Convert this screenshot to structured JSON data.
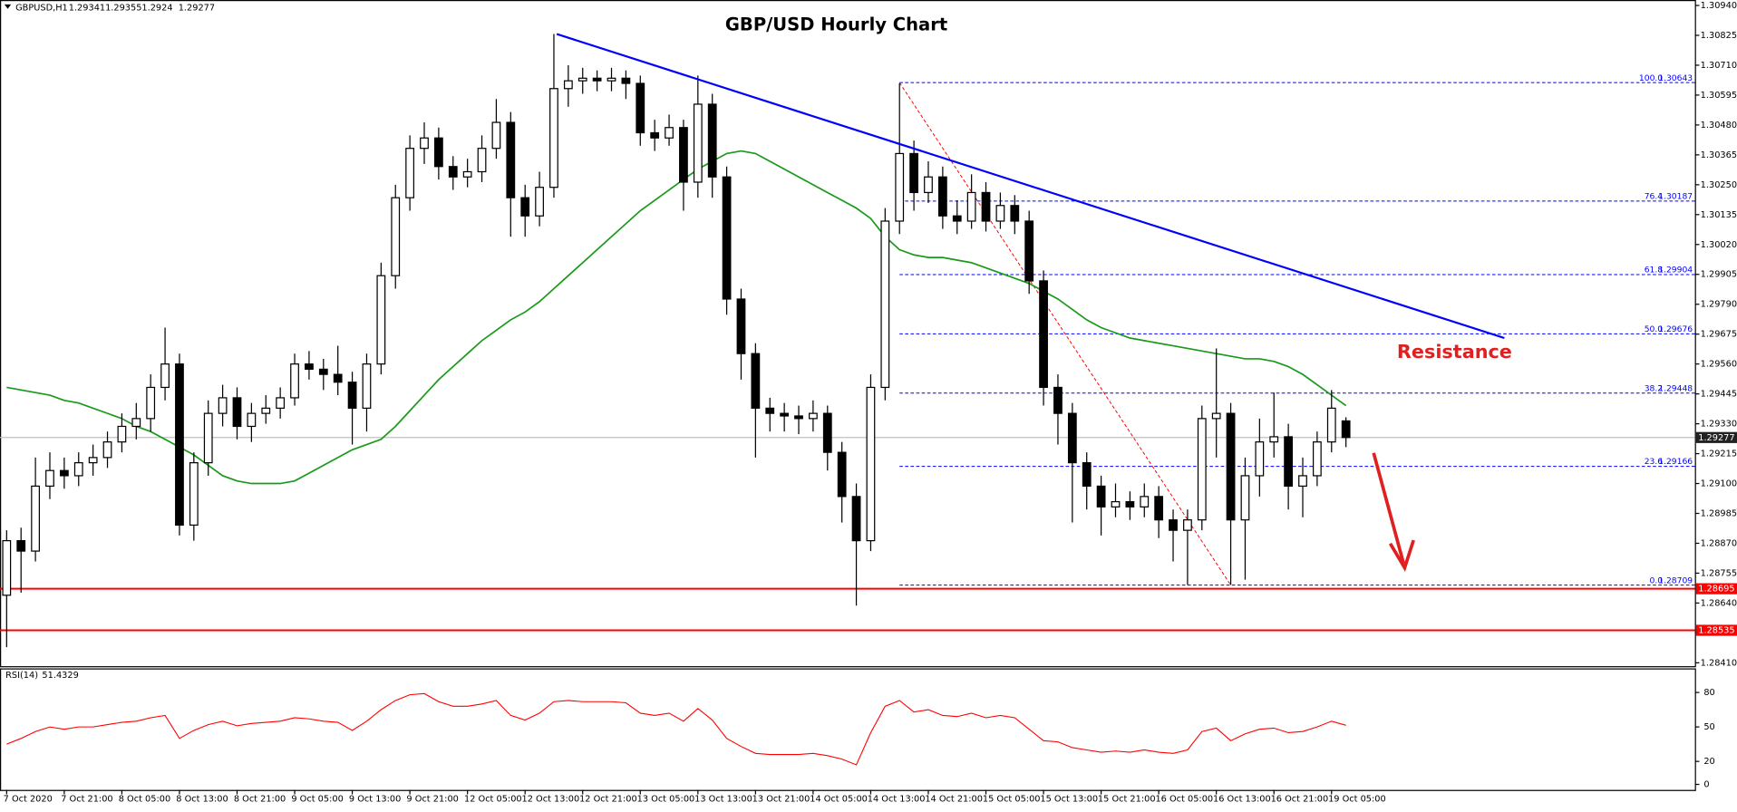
{
  "chart_data": {
    "type": "candlestick",
    "title": "GBP/USD Hourly Chart",
    "symbol": "GBPUSD,H1",
    "categories": [
      "7 Oct 2020",
      null,
      null,
      null,
      "7 Oct 21:00",
      null,
      null,
      null,
      "8 Oct 05:00",
      null,
      null,
      null,
      "8 Oct 13:00",
      null,
      null,
      null,
      "8 Oct 21:00",
      null,
      null,
      null,
      "9 Oct 05:00",
      null,
      null,
      null,
      "9 Oct 13:00",
      null,
      null,
      null,
      "9 Oct 21:00",
      null,
      null,
      null,
      "12 Oct 05:00",
      null,
      null,
      null,
      "12 Oct 13:00",
      null,
      null,
      null,
      "12 Oct 21:00",
      null,
      null,
      null,
      "13 Oct 05:00",
      null,
      null,
      null,
      "13 Oct 13:00",
      null,
      null,
      null,
      "13 Oct 21:00",
      null,
      null,
      null,
      "14 Oct 05:00",
      null,
      null,
      null,
      "14 Oct 13:00",
      null,
      null,
      null,
      "14 Oct 21:00",
      null,
      null,
      null,
      "15 Oct 05:00",
      null,
      null,
      null,
      "15 Oct 13:00",
      null,
      null,
      null,
      "15 Oct 21:00",
      null,
      null,
      null,
      "16 Oct 05:00",
      null,
      null,
      null,
      "16 Oct 13:00",
      null,
      null,
      null,
      "16 Oct 21:00",
      null,
      null,
      null,
      "19 Oct 05:00",
      null
    ],
    "open": [
      1.2867,
      1.2888,
      1.2884,
      1.2909,
      1.2915,
      1.2913,
      1.2918,
      1.292,
      1.2926,
      1.2932,
      1.2935,
      1.2947,
      1.2956,
      1.2894,
      1.2918,
      1.2937,
      1.2943,
      1.2932,
      1.2937,
      1.2939,
      1.2943,
      1.2956,
      1.2954,
      1.2952,
      1.2949,
      1.2939,
      1.2956,
      1.299,
      1.302,
      1.3039,
      1.3043,
      1.3032,
      1.3028,
      1.303,
      1.3039,
      1.3049,
      1.302,
      1.3013,
      1.3024,
      1.3062,
      1.3065,
      1.3066,
      1.3065,
      1.3066,
      1.3064,
      1.3045,
      1.3043,
      1.3047,
      1.3026,
      1.3056,
      1.3028,
      1.2981,
      1.296,
      1.2939,
      1.2937,
      1.2936,
      1.2935,
      1.2937,
      1.2922,
      1.2905,
      1.2888,
      1.2947,
      1.3011,
      1.3037,
      1.3022,
      1.3028,
      1.3013,
      1.3011,
      1.3022,
      1.3011,
      1.3017,
      1.3011,
      1.2988,
      1.2947,
      1.2937,
      1.2918,
      1.2909,
      1.2901,
      1.2903,
      1.2901,
      1.2905,
      1.2896,
      1.2892,
      1.2896,
      1.2935,
      1.2937,
      1.2896,
      1.2913,
      1.2926,
      1.2928,
      1.2909,
      1.2913,
      1.2926,
      1.29341
    ],
    "high": [
      1.2892,
      1.2893,
      1.292,
      1.2922,
      1.292,
      1.2922,
      1.2925,
      1.293,
      1.2937,
      1.2941,
      1.2952,
      1.297,
      1.296,
      1.2922,
      1.2942,
      1.2948,
      1.2947,
      1.2941,
      1.2944,
      1.2947,
      1.296,
      1.2961,
      1.2958,
      1.2963,
      1.2953,
      1.296,
      1.2995,
      1.3025,
      1.3044,
      1.3049,
      1.3047,
      1.3036,
      1.3035,
      1.3044,
      1.3058,
      1.3053,
      1.3025,
      1.303,
      1.3083,
      1.3071,
      1.307,
      1.3069,
      1.307,
      1.3069,
      1.3067,
      1.305,
      1.3052,
      1.305,
      1.3067,
      1.306,
      1.3032,
      1.2985,
      1.2964,
      1.2943,
      1.2941,
      1.294,
      1.2942,
      1.294,
      1.2926,
      1.291,
      1.2952,
      1.3016,
      1.3064,
      1.3042,
      1.3034,
      1.3032,
      1.3019,
      1.3029,
      1.3026,
      1.3022,
      1.3021,
      1.3015,
      1.2992,
      1.2952,
      1.2941,
      1.2922,
      1.2913,
      1.291,
      1.2907,
      1.291,
      1.2909,
      1.29,
      1.29,
      1.294,
      1.2962,
      1.2941,
      1.292,
      1.2935,
      1.2945,
      1.2933,
      1.292,
      1.293,
      1.2946,
      1.29355
    ],
    "low": [
      1.2847,
      1.2868,
      1.288,
      1.2904,
      1.2908,
      1.2909,
      1.2913,
      1.2916,
      1.2922,
      1.2927,
      1.293,
      1.2942,
      1.289,
      1.2888,
      1.2913,
      1.2932,
      1.2927,
      1.2926,
      1.2933,
      1.2935,
      1.294,
      1.295,
      1.2946,
      1.2944,
      1.2925,
      1.293,
      1.2952,
      1.2985,
      1.3015,
      1.3033,
      1.3027,
      1.3023,
      1.3024,
      1.3026,
      1.3035,
      1.3005,
      1.3005,
      1.3009,
      1.302,
      1.3055,
      1.306,
      1.3061,
      1.3061,
      1.3058,
      1.304,
      1.3038,
      1.304,
      1.3015,
      1.302,
      1.302,
      1.2975,
      1.295,
      1.292,
      1.293,
      1.293,
      1.2929,
      1.293,
      1.2915,
      1.2895,
      1.2863,
      1.2884,
      1.2942,
      1.3006,
      1.3015,
      1.3018,
      1.3008,
      1.3006,
      1.3008,
      1.3007,
      1.3008,
      1.3006,
      1.2983,
      1.294,
      1.2925,
      1.2895,
      1.29,
      1.289,
      1.2897,
      1.2896,
      1.2897,
      1.2889,
      1.288,
      1.2871,
      1.2892,
      1.292,
      1.2871,
      1.2873,
      1.2905,
      1.292,
      1.29,
      1.2897,
      1.2909,
      1.2922,
      1.2924
    ],
    "close": [
      1.2888,
      1.2884,
      1.2909,
      1.2915,
      1.2913,
      1.2918,
      1.292,
      1.2926,
      1.2932,
      1.2935,
      1.2947,
      1.2956,
      1.2894,
      1.2918,
      1.2937,
      1.2943,
      1.2932,
      1.2937,
      1.2939,
      1.2943,
      1.2956,
      1.2954,
      1.2952,
      1.2949,
      1.2939,
      1.2956,
      1.299,
      1.302,
      1.3039,
      1.3043,
      1.3032,
      1.3028,
      1.303,
      1.3039,
      1.3049,
      1.302,
      1.3013,
      1.3024,
      1.3062,
      1.3065,
      1.3066,
      1.3065,
      1.3066,
      1.3064,
      1.3045,
      1.3043,
      1.3047,
      1.3026,
      1.3056,
      1.3028,
      1.2981,
      1.296,
      1.2939,
      1.2937,
      1.2936,
      1.2935,
      1.2937,
      1.2922,
      1.2905,
      1.2888,
      1.2947,
      1.3011,
      1.3037,
      1.3022,
      1.3028,
      1.3013,
      1.3011,
      1.3022,
      1.3011,
      1.3017,
      1.3011,
      1.2988,
      1.2947,
      1.2937,
      1.2918,
      1.2909,
      1.2901,
      1.2903,
      1.2901,
      1.2905,
      1.2896,
      1.2892,
      1.2896,
      1.2935,
      1.2937,
      1.2896,
      1.2913,
      1.2926,
      1.2928,
      1.2909,
      1.2913,
      1.2926,
      1.2939,
      1.29277
    ],
    "ylim": [
      1.28397,
      1.30961
    ],
    "yticks": [
      {
        "value": 1.3094,
        "label": "1.30940"
      },
      {
        "value": 1.30825,
        "label": "1.30825"
      },
      {
        "value": 1.3071,
        "label": "1.30710"
      },
      {
        "value": 1.30595,
        "label": "1.30595"
      },
      {
        "value": 1.3048,
        "label": "1.30480"
      },
      {
        "value": 1.30365,
        "label": "1.30365"
      },
      {
        "value": 1.3025,
        "label": "1.30250"
      },
      {
        "value": 1.30135,
        "label": "1.30135"
      },
      {
        "value": 1.3002,
        "label": "1.30020"
      },
      {
        "value": 1.29905,
        "label": "1.29905"
      },
      {
        "value": 1.2979,
        "label": "1.29790"
      },
      {
        "value": 1.29675,
        "label": "1.29675"
      },
      {
        "value": 1.2956,
        "label": "1.29560"
      },
      {
        "value": 1.29445,
        "label": "1.29445"
      },
      {
        "value": 1.2933,
        "label": "1.29330"
      },
      {
        "value": 1.29215,
        "label": "1.29215"
      },
      {
        "value": 1.291,
        "label": "1.29100"
      },
      {
        "value": 1.28985,
        "label": "1.28985"
      },
      {
        "value": 1.2887,
        "label": "1.28870"
      },
      {
        "value": 1.28755,
        "label": "1.28755"
      },
      {
        "value": 1.2864,
        "label": "1.28640"
      },
      {
        "value": 1.28525,
        "label": "1.28525"
      },
      {
        "value": 1.2841,
        "label": "1.28410"
      }
    ],
    "moving_average": {
      "color": "#1a9a1a",
      "values": [
        1.2947,
        1.2946,
        1.2945,
        1.2944,
        1.2942,
        1.2941,
        1.2939,
        1.2937,
        1.2935,
        1.2932,
        1.293,
        1.2927,
        1.2924,
        1.2921,
        1.2917,
        1.2913,
        1.2911,
        1.291,
        1.291,
        1.291,
        1.2911,
        1.2914,
        1.2917,
        1.292,
        1.2923,
        1.2925,
        1.2927,
        1.2932,
        1.2938,
        1.2944,
        1.295,
        1.2955,
        1.296,
        1.2965,
        1.2969,
        1.2973,
        1.2976,
        1.298,
        1.2985,
        1.299,
        1.2995,
        1.3,
        1.3005,
        1.301,
        1.3015,
        1.3019,
        1.3023,
        1.3027,
        1.3031,
        1.3034,
        1.3037,
        1.3038,
        1.3037,
        1.3034,
        1.3031,
        1.3028,
        1.3025,
        1.3022,
        1.3019,
        1.3016,
        1.3012,
        1.3005,
        1.3,
        1.2998,
        1.2997,
        1.2997,
        1.2996,
        1.2995,
        1.2993,
        1.2991,
        1.2989,
        1.2987,
        1.2984,
        1.2981,
        1.2977,
        1.2973,
        1.297,
        1.2968,
        1.2966,
        1.2965,
        1.2964,
        1.2963,
        1.2962,
        1.2961,
        1.296,
        1.2959,
        1.2958,
        1.2958,
        1.2957,
        1.2955,
        1.2952,
        1.2948,
        1.2944,
        1.294
      ]
    },
    "trendline": {
      "color": "#0000ff",
      "x": [
        38.2,
        104
      ],
      "y": [
        1.3083,
        1.2966
      ]
    },
    "fibonacci": {
      "color": "#0000ff",
      "start": 62,
      "levels": [
        "100.0",
        "76.4",
        "61.8",
        "50.0",
        "38.2",
        "23.6",
        "0.0"
      ],
      "prices": [
        1.30643,
        1.30187,
        1.29904,
        1.29676,
        1.29448,
        1.29166,
        1.28709
      ],
      "swing_x": [
        62,
        85
      ],
      "swing_color": "#ff0000"
    },
    "support_levels": {
      "color": "#ff0000",
      "values": [
        1.28695,
        1.28535
      ]
    },
    "annotations": [
      "Resistance"
    ],
    "rsi": {
      "title": "RSI(14)",
      "color": "#ff0000",
      "ylim": [
        0,
        100
      ],
      "yticks": [
        0,
        20,
        50,
        80
      ],
      "values": [
        35,
        40,
        46,
        50,
        48,
        50,
        50,
        52,
        54,
        55,
        58,
        60,
        40,
        47,
        52,
        55,
        51,
        53,
        54,
        55,
        58,
        57,
        55,
        54,
        47,
        55,
        65,
        73,
        78,
        79,
        72,
        68,
        68,
        70,
        73,
        60,
        56,
        62,
        72,
        73,
        72,
        72,
        72,
        71,
        62,
        60,
        62,
        55,
        66,
        56,
        40,
        33,
        27,
        26,
        26,
        26,
        27,
        25,
        22,
        17,
        45,
        68,
        73,
        63,
        65,
        60,
        59,
        62,
        58,
        60,
        58,
        48,
        38,
        37,
        32,
        30,
        28,
        29,
        28,
        30,
        28,
        27,
        30,
        46,
        49,
        38,
        44,
        48,
        49,
        45,
        46,
        50,
        55,
        51.4329
      ]
    }
  }
}
